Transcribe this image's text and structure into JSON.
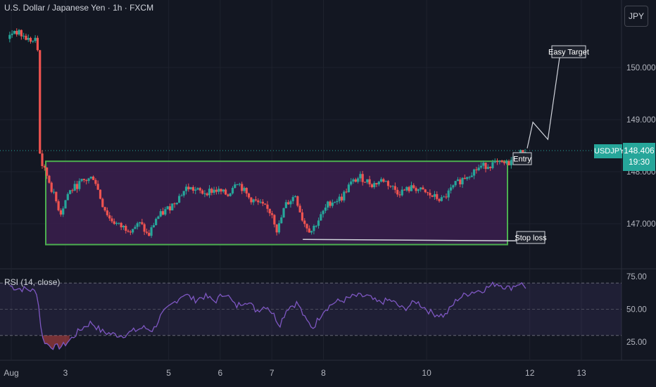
{
  "header": {
    "title": "U.S. Dollar / Japanese Yen · 1h · FXCM",
    "currency_button": "JPY"
  },
  "price_axis": {
    "ticks": [
      {
        "value": 150.0,
        "label": "150.000"
      },
      {
        "value": 149.0,
        "label": "149.000"
      },
      {
        "value": 148.0,
        "label": "148.000"
      },
      {
        "value": 147.0,
        "label": "147.000"
      }
    ]
  },
  "current_price": {
    "symbol": "USDJPY",
    "price": "148.406",
    "countdown": "19:30",
    "value": 148.406
  },
  "annotations": {
    "entry_label": "Entry",
    "target_label": "Easy Target",
    "stop_label": "Stop loss",
    "range_box": {
      "top": 148.2,
      "bottom": 146.6,
      "color": "#4caf50"
    },
    "target_path": [
      [
        11.95,
        148.45
      ],
      [
        12.06,
        148.95
      ],
      [
        12.35,
        148.62
      ],
      [
        12.6,
        150.35
      ]
    ],
    "stop_line": {
      "x_start": 7.6,
      "x_end": 11.93,
      "y_start": 146.7,
      "y_end": 146.67
    }
  },
  "rsi": {
    "label": "RSI (14, close)",
    "ticks": [
      {
        "value": 75,
        "label": "75.00"
      },
      {
        "value": 50,
        "label": "50.00"
      },
      {
        "value": 25,
        "label": "25.00"
      }
    ],
    "upper": 70,
    "mid": 50,
    "lower": 30
  },
  "time_axis": {
    "ticks": [
      {
        "value": 1.95,
        "label": "Aug"
      },
      {
        "value": 3,
        "label": "3"
      },
      {
        "value": 5,
        "label": "5"
      },
      {
        "value": 6,
        "label": "6"
      },
      {
        "value": 7,
        "label": "7"
      },
      {
        "value": 8,
        "label": "8"
      },
      {
        "value": 10,
        "label": "10"
      },
      {
        "value": 12,
        "label": "12"
      },
      {
        "value": 13,
        "label": "13"
      }
    ]
  },
  "colors": {
    "up": "#26a69a",
    "down": "#ef5350",
    "rsi_line": "#7e57c2",
    "box_fill": "#3b1f4d",
    "grid": "#1e222d"
  },
  "chart_data": {
    "type": "candlestick",
    "title": "U.S. Dollar / Japanese Yen · 1h · FXCM",
    "x_unit": "day of August",
    "ylim": [
      146.35,
      151.2
    ],
    "xlim": [
      1.9,
      13.5
    ],
    "price_anchors": [
      [
        1.92,
        150.55
      ],
      [
        2.05,
        150.72
      ],
      [
        2.3,
        150.55
      ],
      [
        2.42,
        150.5
      ],
      [
        2.5,
        150.55
      ],
      [
        2.55,
        148.35
      ],
      [
        2.6,
        148.1
      ],
      [
        2.7,
        147.9
      ],
      [
        2.8,
        147.6
      ],
      [
        2.95,
        147.2
      ],
      [
        3.1,
        147.6
      ],
      [
        3.35,
        147.8
      ],
      [
        3.6,
        147.9
      ],
      [
        3.75,
        147.4
      ],
      [
        3.9,
        147.1
      ],
      [
        4.1,
        146.95
      ],
      [
        4.3,
        146.9
      ],
      [
        4.5,
        147.0
      ],
      [
        4.65,
        146.75
      ],
      [
        4.8,
        147.1
      ],
      [
        5.1,
        147.35
      ],
      [
        5.4,
        147.7
      ],
      [
        5.7,
        147.6
      ],
      [
        5.95,
        147.65
      ],
      [
        6.2,
        147.55
      ],
      [
        6.35,
        147.85
      ],
      [
        6.6,
        147.5
      ],
      [
        6.85,
        147.35
      ],
      [
        7.05,
        147.2
      ],
      [
        7.15,
        146.85
      ],
      [
        7.3,
        147.35
      ],
      [
        7.5,
        147.55
      ],
      [
        7.65,
        147.05
      ],
      [
        7.8,
        146.85
      ],
      [
        8.0,
        147.15
      ],
      [
        8.15,
        147.4
      ],
      [
        8.4,
        147.5
      ],
      [
        8.55,
        147.75
      ],
      [
        8.75,
        147.9
      ],
      [
        9.0,
        147.75
      ],
      [
        9.2,
        147.85
      ],
      [
        9.5,
        147.6
      ],
      [
        9.8,
        147.7
      ],
      [
        10.1,
        147.55
      ],
      [
        10.35,
        147.45
      ],
      [
        10.6,
        147.75
      ],
      [
        10.85,
        147.95
      ],
      [
        11.1,
        148.1
      ],
      [
        11.35,
        148.15
      ],
      [
        11.6,
        148.15
      ],
      [
        11.8,
        148.3
      ],
      [
        11.93,
        148.41
      ]
    ],
    "rsi_anchors": [
      [
        1.92,
        68
      ],
      [
        2.05,
        66
      ],
      [
        2.3,
        65
      ],
      [
        2.45,
        63
      ],
      [
        2.55,
        28
      ],
      [
        2.65,
        23
      ],
      [
        2.8,
        21
      ],
      [
        2.95,
        22
      ],
      [
        3.1,
        27
      ],
      [
        3.3,
        35
      ],
      [
        3.5,
        40
      ],
      [
        3.7,
        33
      ],
      [
        3.9,
        31
      ],
      [
        4.1,
        30
      ],
      [
        4.3,
        33
      ],
      [
        4.5,
        36
      ],
      [
        4.7,
        34
      ],
      [
        4.85,
        45
      ],
      [
        5.1,
        55
      ],
      [
        5.3,
        62
      ],
      [
        5.5,
        57
      ],
      [
        5.7,
        60
      ],
      [
        5.9,
        56
      ],
      [
        6.1,
        63
      ],
      [
        6.3,
        52
      ],
      [
        6.5,
        57
      ],
      [
        6.7,
        49
      ],
      [
        6.9,
        53
      ],
      [
        7.05,
        45
      ],
      [
        7.15,
        38
      ],
      [
        7.3,
        51
      ],
      [
        7.5,
        55
      ],
      [
        7.65,
        42
      ],
      [
        7.8,
        36
      ],
      [
        8.0,
        49
      ],
      [
        8.2,
        55
      ],
      [
        8.4,
        57
      ],
      [
        8.6,
        60
      ],
      [
        8.85,
        60
      ],
      [
        9.05,
        55
      ],
      [
        9.3,
        57
      ],
      [
        9.55,
        50
      ],
      [
        9.8,
        56
      ],
      [
        10.1,
        47
      ],
      [
        10.35,
        45
      ],
      [
        10.6,
        58
      ],
      [
        10.85,
        63
      ],
      [
        11.1,
        65
      ],
      [
        11.35,
        70
      ],
      [
        11.6,
        66
      ],
      [
        11.8,
        70
      ],
      [
        11.93,
        67
      ]
    ]
  }
}
